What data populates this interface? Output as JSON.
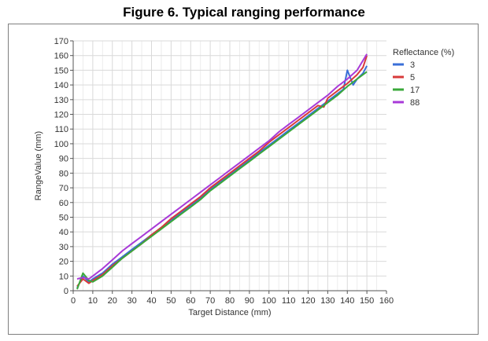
{
  "chart_data": {
    "type": "line",
    "title": "Figure 6. Typical ranging performance",
    "xlabel": "Target Distance (mm)",
    "ylabel": "RangeValue (mm)",
    "xlim": [
      0,
      160
    ],
    "ylim": [
      0,
      170
    ],
    "xticks": [
      0,
      10,
      20,
      30,
      40,
      50,
      60,
      70,
      80,
      90,
      100,
      110,
      120,
      130,
      140,
      150,
      160
    ],
    "yticks": [
      0,
      10,
      20,
      30,
      40,
      50,
      60,
      70,
      80,
      90,
      100,
      110,
      120,
      130,
      140,
      150,
      160,
      170
    ],
    "grid": true,
    "legend_title": "Reflectance (%)",
    "legend_position": "right",
    "series": [
      {
        "name": "3",
        "color": "#3a6fd8",
        "x": [
          2,
          5,
          8,
          10,
          15,
          20,
          25,
          30,
          35,
          40,
          45,
          50,
          55,
          60,
          65,
          70,
          75,
          80,
          85,
          90,
          95,
          100,
          105,
          110,
          115,
          120,
          125,
          130,
          135,
          138,
          140,
          143,
          145,
          148,
          150
        ],
        "y": [
          2,
          10,
          6,
          8,
          12,
          18,
          23,
          28,
          33,
          38,
          43,
          48,
          53,
          58,
          63,
          69,
          74,
          79,
          84,
          89,
          94,
          99,
          104,
          109,
          114,
          119,
          124,
          129,
          134,
          137,
          150,
          140,
          144,
          148,
          153
        ]
      },
      {
        "name": "5",
        "color": "#d83a3a",
        "x": [
          2,
          5,
          8,
          10,
          15,
          20,
          25,
          30,
          35,
          40,
          45,
          50,
          55,
          60,
          65,
          70,
          75,
          80,
          85,
          90,
          95,
          100,
          105,
          110,
          115,
          120,
          125,
          128,
          130,
          135,
          140,
          145,
          148,
          150
        ],
        "y": [
          3,
          8,
          5,
          7,
          11,
          17,
          22,
          27,
          32,
          38,
          43,
          49,
          54,
          59,
          64,
          70,
          75,
          80,
          85,
          90,
          95,
          101,
          106,
          111,
          116,
          121,
          126,
          125,
          131,
          136,
          141,
          147,
          152,
          160
        ]
      },
      {
        "name": "17",
        "color": "#3aa83a",
        "x": [
          2,
          5,
          8,
          10,
          15,
          20,
          25,
          30,
          35,
          40,
          45,
          50,
          55,
          60,
          65,
          70,
          75,
          80,
          85,
          90,
          95,
          100,
          105,
          110,
          115,
          120,
          125,
          130,
          135,
          140,
          145,
          150
        ],
        "y": [
          1,
          12,
          7,
          6,
          10,
          16,
          22,
          27,
          32,
          37,
          42,
          47,
          52,
          57,
          62,
          68,
          73,
          78,
          83,
          88,
          93,
          98,
          103,
          108,
          113,
          118,
          123,
          128,
          133,
          139,
          144,
          149
        ]
      },
      {
        "name": "88",
        "color": "#a83ad8",
        "x": [
          2,
          5,
          8,
          10,
          15,
          20,
          25,
          30,
          35,
          40,
          45,
          50,
          55,
          60,
          65,
          70,
          75,
          80,
          85,
          90,
          95,
          100,
          105,
          110,
          115,
          120,
          125,
          130,
          135,
          140,
          145,
          150
        ],
        "y": [
          8,
          9,
          8,
          10,
          15,
          21,
          27,
          32,
          37,
          42,
          47,
          52,
          57,
          62,
          67,
          72,
          77,
          82,
          87,
          92,
          97,
          102,
          108,
          113,
          118,
          123,
          128,
          133,
          139,
          144,
          150,
          161
        ]
      }
    ]
  }
}
